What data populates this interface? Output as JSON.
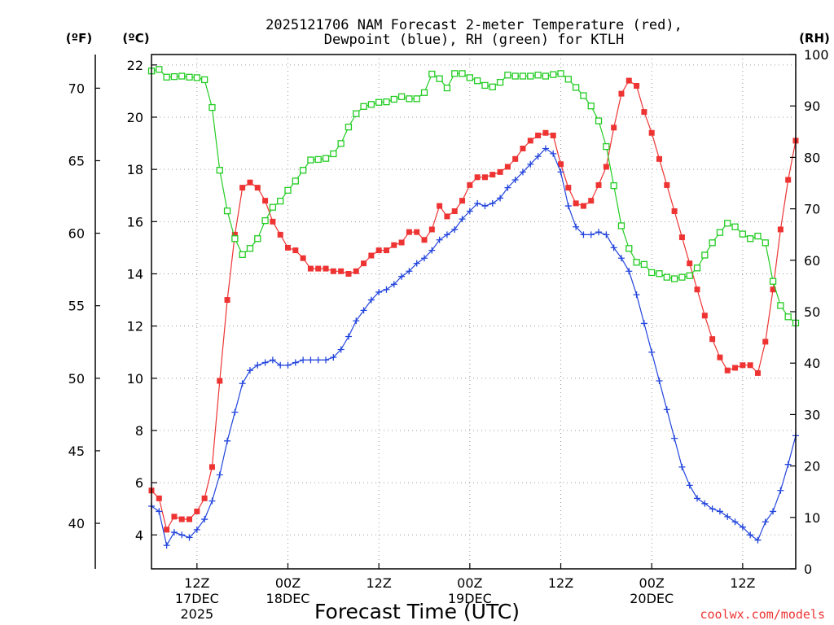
{
  "chart_data": {
    "type": "line",
    "title": [
      "2025121706 NAM Forecast 2-meter Temperature (red),",
      "Dewpoint (blue), RH (green) for KTLH"
    ],
    "xlabel": "Forecast Time (UTC)",
    "watermark": "coolwx.com/models",
    "unit_labels": {
      "fahrenheit": "(ºF)",
      "celsius": "(ºC)",
      "rh": "(RH)"
    },
    "x_domain_hours": [
      0,
      85
    ],
    "x_ticks": [
      {
        "hour": 6,
        "lines": [
          "12Z",
          "17DEC",
          "2025"
        ]
      },
      {
        "hour": 18,
        "lines": [
          "00Z",
          "18DEC"
        ]
      },
      {
        "hour": 30,
        "lines": [
          "12Z"
        ]
      },
      {
        "hour": 42,
        "lines": [
          "00Z",
          "19DEC"
        ]
      },
      {
        "hour": 54,
        "lines": [
          "12Z"
        ]
      },
      {
        "hour": 66,
        "lines": [
          "00Z",
          "20DEC"
        ]
      },
      {
        "hour": 78,
        "lines": [
          "12Z"
        ]
      }
    ],
    "celsius_axis": {
      "ylim": [
        2.7,
        22.4
      ],
      "ticks": [
        "4",
        "6",
        "8",
        "10",
        "12",
        "14",
        "16",
        "18",
        "20",
        "22"
      ]
    },
    "fahrenheit_axis": {
      "ylim": [
        36.86,
        72.32
      ],
      "ticks": [
        "40",
        "45",
        "50",
        "55",
        "60",
        "65",
        "70"
      ]
    },
    "rh_axis": {
      "ylim": [
        0,
        100
      ],
      "ticks": [
        "0",
        "10",
        "20",
        "30",
        "40",
        "50",
        "60",
        "70",
        "80",
        "90",
        "100"
      ]
    },
    "series": [
      {
        "name": "2-meter Temperature (ºC)",
        "axis": "celsius",
        "color": "#ee3333",
        "marker": "filled-square",
        "x": [
          0,
          1,
          2,
          3,
          4,
          5,
          6,
          7,
          8,
          9,
          10,
          11,
          12,
          13,
          14,
          15,
          16,
          17,
          18,
          19,
          20,
          21,
          22,
          23,
          24,
          25,
          26,
          27,
          28,
          29,
          30,
          31,
          32,
          33,
          34,
          35,
          36,
          37,
          38,
          39,
          40,
          41,
          42,
          43,
          44,
          45,
          46,
          47,
          48,
          49,
          50,
          51,
          52,
          53,
          54,
          55,
          56,
          57,
          58,
          59,
          60,
          61,
          62,
          63,
          64,
          65,
          66,
          67,
          68,
          69,
          70,
          71,
          72,
          73,
          74,
          75,
          76,
          77,
          78,
          79,
          80,
          81,
          82,
          83,
          84,
          85
        ],
        "values": [
          5.7,
          5.4,
          4.2,
          4.7,
          4.6,
          4.6,
          4.9,
          5.4,
          6.6,
          9.9,
          13.0,
          15.5,
          17.3,
          17.5,
          17.3,
          16.8,
          16.0,
          15.5,
          15.0,
          14.9,
          14.6,
          14.2,
          14.2,
          14.2,
          14.1,
          14.1,
          14.0,
          14.1,
          14.4,
          14.7,
          14.9,
          14.9,
          15.1,
          15.2,
          15.6,
          15.6,
          15.3,
          15.7,
          16.6,
          16.2,
          16.4,
          16.8,
          17.4,
          17.7,
          17.7,
          17.8,
          17.9,
          18.1,
          18.4,
          18.8,
          19.1,
          19.3,
          19.4,
          19.3,
          18.2,
          17.3,
          16.7,
          16.6,
          16.8,
          17.4,
          18.1,
          19.6,
          20.9,
          21.4,
          21.2,
          20.2,
          19.4,
          18.4,
          17.4,
          16.4,
          15.4,
          14.4,
          13.4,
          12.4,
          11.5,
          10.8,
          10.3,
          10.4,
          10.5,
          10.5,
          10.2,
          11.4,
          13.4,
          15.7,
          17.6,
          19.1
        ]
      },
      {
        "name": "Dewpoint (ºC)",
        "axis": "celsius",
        "color": "#2244dd",
        "marker": "plus",
        "x": [
          0,
          1,
          2,
          3,
          4,
          5,
          6,
          7,
          8,
          9,
          10,
          11,
          12,
          13,
          14,
          15,
          16,
          17,
          18,
          19,
          20,
          21,
          22,
          23,
          24,
          25,
          26,
          27,
          28,
          29,
          30,
          31,
          32,
          33,
          34,
          35,
          36,
          37,
          38,
          39,
          40,
          41,
          42,
          43,
          44,
          45,
          46,
          47,
          48,
          49,
          50,
          51,
          52,
          53,
          54,
          55,
          56,
          57,
          58,
          59,
          60,
          61,
          62,
          63,
          64,
          65,
          66,
          67,
          68,
          69,
          70,
          71,
          72,
          73,
          74,
          75,
          76,
          77,
          78,
          79,
          80,
          81,
          82,
          83,
          84,
          85
        ],
        "values": [
          5.1,
          4.9,
          3.6,
          4.1,
          4.0,
          3.9,
          4.2,
          4.6,
          5.3,
          6.3,
          7.6,
          8.7,
          9.8,
          10.3,
          10.5,
          10.6,
          10.7,
          10.5,
          10.5,
          10.6,
          10.7,
          10.7,
          10.7,
          10.7,
          10.8,
          11.1,
          11.6,
          12.2,
          12.6,
          13.0,
          13.3,
          13.4,
          13.6,
          13.9,
          14.1,
          14.4,
          14.6,
          14.9,
          15.3,
          15.5,
          15.7,
          16.1,
          16.4,
          16.7,
          16.6,
          16.7,
          16.9,
          17.3,
          17.6,
          17.9,
          18.2,
          18.5,
          18.8,
          18.6,
          17.9,
          16.6,
          15.8,
          15.5,
          15.5,
          15.6,
          15.5,
          15.0,
          14.6,
          14.1,
          13.2,
          12.1,
          11.0,
          9.9,
          8.8,
          7.7,
          6.6,
          5.9,
          5.4,
          5.2,
          5.0,
          4.9,
          4.7,
          4.5,
          4.3,
          4.0,
          3.8,
          4.5,
          4.9,
          5.7,
          6.7,
          7.8
        ]
      },
      {
        "name": "RH (%)",
        "axis": "rh",
        "color": "#22cc22",
        "marker": "open-square",
        "x": [
          0,
          1,
          2,
          3,
          4,
          5,
          6,
          7,
          8,
          9,
          10,
          11,
          12,
          13,
          14,
          15,
          16,
          17,
          18,
          19,
          20,
          21,
          22,
          23,
          24,
          25,
          26,
          27,
          28,
          29,
          30,
          31,
          32,
          33,
          34,
          35,
          36,
          37,
          38,
          39,
          40,
          41,
          42,
          43,
          44,
          45,
          46,
          47,
          48,
          49,
          50,
          51,
          52,
          53,
          54,
          55,
          56,
          57,
          58,
          59,
          60,
          61,
          62,
          63,
          64,
          65,
          66,
          67,
          68,
          69,
          70,
          71,
          72,
          73,
          74,
          75,
          76,
          77,
          78,
          79,
          80,
          81,
          82,
          83,
          84,
          85
        ],
        "values": [
          96.8,
          97.1,
          95.6,
          95.7,
          95.8,
          95.6,
          95.5,
          95.1,
          89.7,
          77.5,
          69.6,
          64.2,
          61.1,
          62.3,
          64.2,
          67.7,
          70.3,
          71.5,
          73.6,
          75.4,
          77.5,
          79.5,
          79.6,
          79.8,
          80.7,
          82.7,
          85.9,
          88.5,
          89.9,
          90.3,
          90.7,
          90.8,
          91.3,
          91.8,
          91.4,
          91.4,
          92.6,
          96.2,
          95.3,
          93.5,
          96.3,
          96.3,
          95.5,
          94.9,
          94.0,
          93.7,
          94.6,
          96.0,
          95.8,
          95.8,
          95.8,
          96.0,
          95.8,
          96.1,
          96.3,
          95.2,
          93.6,
          92.0,
          90.0,
          87.1,
          82.1,
          74.5,
          66.7,
          62.3,
          59.6,
          59.2,
          57.6,
          57.4,
          56.7,
          56.4,
          56.7,
          57.0,
          58.5,
          61.0,
          63.4,
          65.4,
          67.2,
          66.5,
          65.1,
          64.2,
          64.7,
          63.4,
          55.9,
          51.2,
          49.0,
          47.8
        ]
      }
    ]
  }
}
